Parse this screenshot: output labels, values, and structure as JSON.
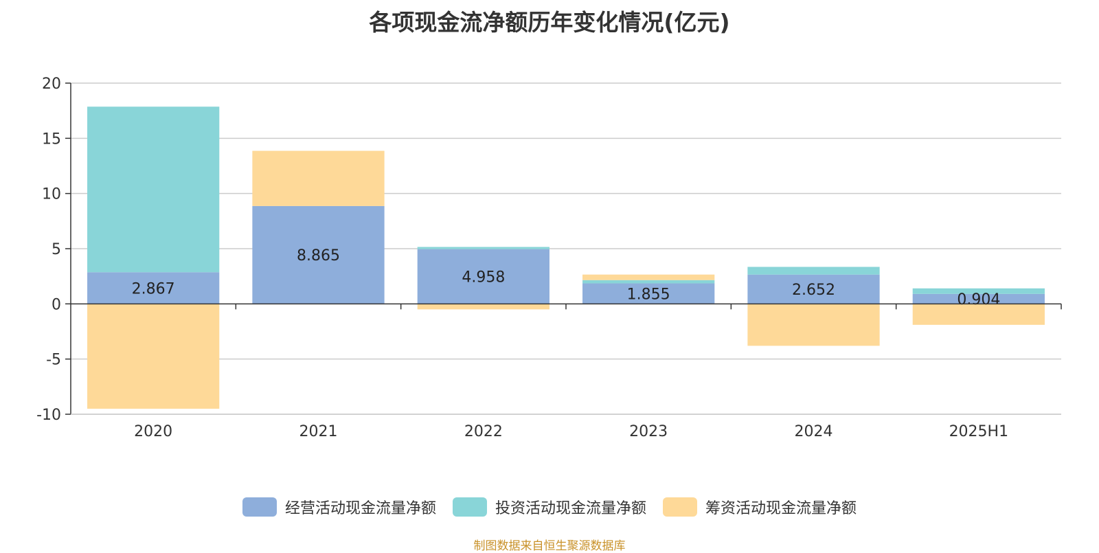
{
  "chart_data": {
    "type": "bar",
    "stacked": true,
    "title": "各项现金流净额历年变化情况(亿元)",
    "categories": [
      "2020",
      "2021",
      "2022",
      "2023",
      "2024",
      "2025H1"
    ],
    "ylim": [
      -10,
      20
    ],
    "yticks": [
      20,
      15,
      10,
      5,
      0,
      -5,
      -10
    ],
    "grid": true,
    "legend_position": "bottom",
    "series": [
      {
        "name": "经营活动现金流量净额",
        "color": "#8eaedb",
        "values": [
          2.867,
          8.865,
          4.958,
          1.855,
          2.652,
          0.904
        ],
        "labels": [
          "2.867",
          "8.865",
          "4.958",
          "1.855",
          "2.652",
          "0.904"
        ]
      },
      {
        "name": "投资活动现金流量净额",
        "color": "#89d5d8",
        "values": [
          15.0,
          0,
          0.2,
          0.3,
          0.7,
          0.5
        ]
      },
      {
        "name": "筹资活动现金流量净额",
        "color": "#fed998",
        "values": [
          -9.5,
          5.0,
          -0.5,
          0.5,
          -3.8,
          -1.9
        ]
      }
    ],
    "source": "制图数据来自恒生聚源数据库"
  }
}
